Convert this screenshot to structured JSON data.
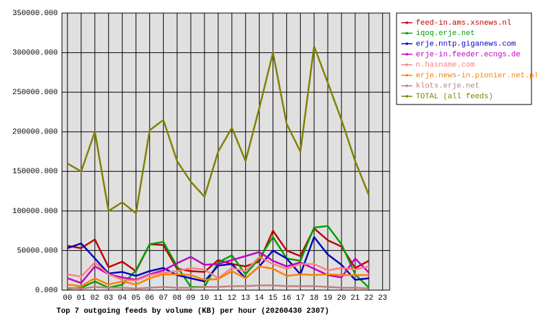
{
  "chart_data": {
    "type": "line",
    "title": "Top 7 outgoing feeds by volume (KB) per hour (20260430 2307)",
    "categories": [
      "00",
      "01",
      "02",
      "03",
      "04",
      "05",
      "06",
      "07",
      "08",
      "09",
      "10",
      "11",
      "12",
      "13",
      "14",
      "15",
      "16",
      "17",
      "18",
      "19",
      "20",
      "21",
      "22",
      "23"
    ],
    "ylim": [
      0,
      350000
    ],
    "yticks": [
      {
        "value": 0,
        "label": "0.000"
      },
      {
        "value": 50000,
        "label": "50000.000"
      },
      {
        "value": 100000,
        "label": "100000.000"
      },
      {
        "value": 150000,
        "label": "150000.000"
      },
      {
        "value": 200000,
        "label": "200000.000"
      },
      {
        "value": 250000,
        "label": "250000.000"
      },
      {
        "value": 300000,
        "label": "300000.000"
      },
      {
        "value": 350000,
        "label": "350000.000"
      }
    ],
    "grid": true,
    "legend": "right",
    "series": [
      {
        "name": "feed-in.ams.xsnews.nl",
        "color": "#c00000",
        "values": [
          56000,
          53000,
          64000,
          29000,
          36000,
          24000,
          58000,
          57000,
          27000,
          24000,
          23000,
          38000,
          33000,
          30000,
          36000,
          75000,
          50000,
          43000,
          78000,
          63000,
          55000,
          28000,
          37000,
          null
        ]
      },
      {
        "name": "iqoq.erje.net",
        "color": "#00a000",
        "values": [
          2000,
          3000,
          11000,
          3000,
          7000,
          25000,
          58000,
          61000,
          30000,
          4000,
          4000,
          35000,
          44000,
          20000,
          40000,
          67000,
          40000,
          37000,
          79000,
          81000,
          58000,
          20000,
          3000,
          null
        ]
      },
      {
        "name": "erje.nntp.giganews.com",
        "color": "#0000c0",
        "values": [
          53000,
          59000,
          40000,
          21000,
          23000,
          18000,
          24000,
          28000,
          19000,
          15000,
          11000,
          31000,
          33000,
          15000,
          30000,
          50000,
          40000,
          20000,
          67000,
          45000,
          32000,
          13000,
          15000,
          null
        ]
      },
      {
        "name": "erje-in.feeder.ecngs.de",
        "color": "#c000c0",
        "values": [
          15000,
          9000,
          30000,
          20000,
          16000,
          13000,
          20000,
          25000,
          34000,
          42000,
          32000,
          33000,
          38000,
          43000,
          48000,
          37000,
          30000,
          35000,
          27000,
          19000,
          16000,
          40000,
          22000,
          null
        ]
      },
      {
        "name": "n.hasname.com",
        "color": "#ff8080",
        "values": [
          20000,
          17000,
          35000,
          20000,
          13000,
          12000,
          19000,
          22000,
          24000,
          28000,
          26000,
          15000,
          28000,
          24000,
          42000,
          33000,
          27000,
          33000,
          33000,
          25000,
          28000,
          26000,
          30000,
          null
        ]
      },
      {
        "name": "erje.news-in.pionier.net.pl",
        "color": "#ff8000",
        "values": [
          7000,
          5000,
          15000,
          7000,
          11000,
          7000,
          15000,
          20000,
          20000,
          19000,
          13000,
          14000,
          24000,
          15000,
          30000,
          27000,
          18000,
          20000,
          19000,
          20000,
          19000,
          19000,
          19000,
          null
        ]
      },
      {
        "name": "klots.erje.net",
        "color": "#c08080",
        "values": [
          3000,
          2000,
          4000,
          3000,
          3000,
          2000,
          3000,
          4000,
          3000,
          3000,
          4000,
          4000,
          5000,
          5000,
          6000,
          6000,
          5000,
          5000,
          5000,
          4000,
          3000,
          3000,
          2000,
          null
        ]
      },
      {
        "name": "TOTAL (all feeds)",
        "color": "#808000",
        "values": [
          160000,
          150000,
          200000,
          100000,
          111000,
          97000,
          202000,
          215000,
          163000,
          137000,
          118000,
          175000,
          205000,
          163000,
          230000,
          300000,
          210000,
          175000,
          308000,
          262000,
          215000,
          163000,
          120000,
          null
        ]
      }
    ]
  }
}
